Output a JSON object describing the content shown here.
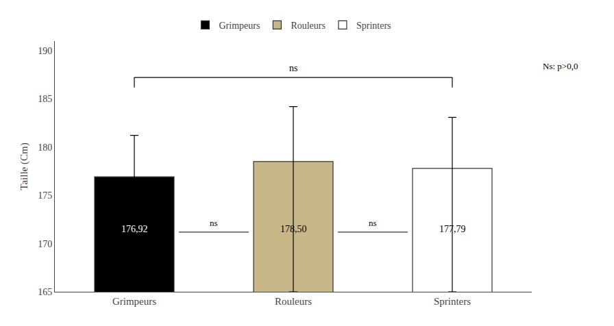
{
  "chart_data": {
    "type": "bar",
    "categories": [
      "Grimpeurs",
      "Rouleurs",
      "Sprinters"
    ],
    "values": [
      176.92,
      178.5,
      177.79
    ],
    "errors_upper": [
      4.3,
      5.7,
      5.3
    ],
    "errors_lower": [
      11.92,
      13.5,
      12.79
    ],
    "colors": [
      "#000000",
      "#c8b888",
      "#ffffff"
    ],
    "data_labels": true,
    "value_labels": [
      "176,92",
      "178,50",
      "177,79"
    ],
    "ylabel": "Taille (Cm)",
    "ylim": [
      165,
      191
    ],
    "yticks": [
      165,
      170,
      175,
      180,
      185,
      190
    ],
    "grid": false,
    "legend": "top",
    "annotations": [
      {
        "text": "ns",
        "from": "Grimpeurs",
        "to": "Rouleurs"
      },
      {
        "text": "ns",
        "from": "Rouleurs",
        "to": "Sprinters"
      },
      {
        "text": "ns",
        "from": "Grimpeurs",
        "to": "Sprinters"
      },
      {
        "text": "Ns: p>0,0"
      }
    ]
  }
}
